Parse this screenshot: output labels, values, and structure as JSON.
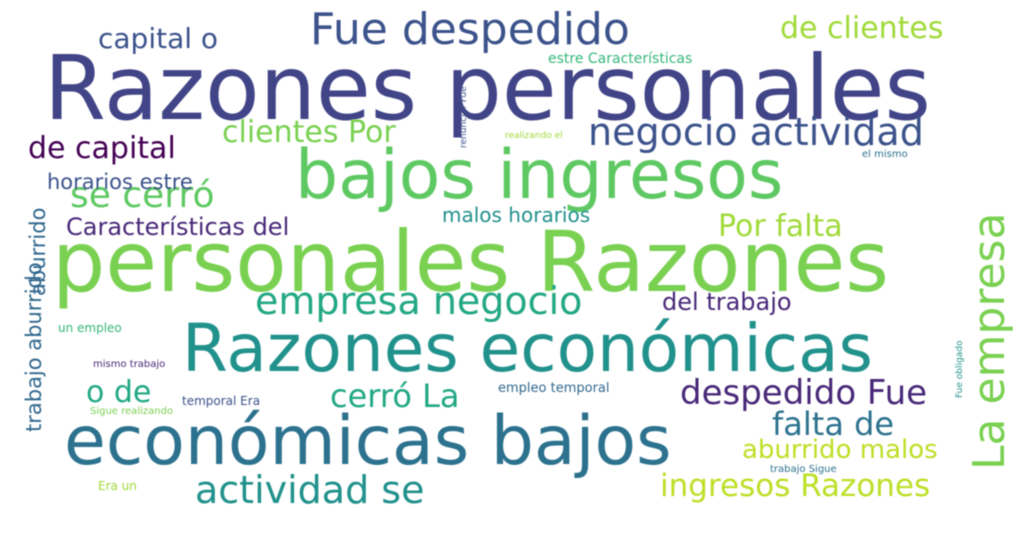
{
  "wordcloud": {
    "words": [
      {
        "id": "w01",
        "text": "Razones personales",
        "color": "#414487"
      },
      {
        "id": "w02",
        "text": "personales Razones",
        "color": "#7ad151"
      },
      {
        "id": "w03",
        "text": "bajos ingresos",
        "color": "#5ec962"
      },
      {
        "id": "w04",
        "text": "Razones económicas",
        "color": "#21918c"
      },
      {
        "id": "w05",
        "text": "económicas bajos",
        "color": "#2c728e"
      },
      {
        "id": "w06",
        "text": "Fue despedido",
        "color": "#3b528b"
      },
      {
        "id": "w07",
        "text": "La empresa",
        "color": "#7ad151"
      },
      {
        "id": "w08",
        "text": "empresa negocio",
        "color": "#22a884"
      },
      {
        "id": "w09",
        "text": "negocio actividad",
        "color": "#3b528b"
      },
      {
        "id": "w10",
        "text": "actividad se",
        "color": "#21918c"
      },
      {
        "id": "w11",
        "text": "ingresos Razones",
        "color": "#bddf26"
      },
      {
        "id": "w12",
        "text": "despedido Fue",
        "color": "#482878"
      },
      {
        "id": "w13",
        "text": "se cerró",
        "color": "#5ec962"
      },
      {
        "id": "w14",
        "text": "capital o",
        "color": "#3b528b"
      },
      {
        "id": "w15",
        "text": "de clientes",
        "color": "#a0da39"
      },
      {
        "id": "w16",
        "text": "de capital",
        "color": "#440154"
      },
      {
        "id": "w17",
        "text": "clientes Por",
        "color": "#7ad151"
      },
      {
        "id": "w18",
        "text": "cerró La",
        "color": "#22a884"
      },
      {
        "id": "w19",
        "text": "falta de",
        "color": "#2c728e"
      },
      {
        "id": "w20",
        "text": "aburrido malos",
        "color": "#bddf26"
      },
      {
        "id": "w21",
        "text": "Por falta",
        "color": "#a0da39"
      },
      {
        "id": "w22",
        "text": "Características del",
        "color": "#482878"
      },
      {
        "id": "w23",
        "text": "del trabajo",
        "color": "#482878"
      },
      {
        "id": "w24",
        "text": "o de",
        "color": "#22a884"
      },
      {
        "id": "w25",
        "text": "malos horarios",
        "color": "#21918c"
      },
      {
        "id": "w26",
        "text": "horarios estre",
        "color": "#3b528b"
      },
      {
        "id": "w27",
        "text": "aburrido",
        "color": "#31688e"
      },
      {
        "id": "w28",
        "text": "trabajo aburrido",
        "color": "#31688e"
      },
      {
        "id": "w29",
        "text": "estre Características",
        "color": "#35b779"
      },
      {
        "id": "w30",
        "text": "renunciar Fue",
        "color": "#3b528b"
      },
      {
        "id": "w31",
        "text": "realizando el",
        "color": "#a0da39"
      },
      {
        "id": "w32",
        "text": "el mismo",
        "color": "#2c728e"
      },
      {
        "id": "w33",
        "text": "un empleo",
        "color": "#35b779"
      },
      {
        "id": "w34",
        "text": "mismo trabajo",
        "color": "#482878"
      },
      {
        "id": "w35",
        "text": "temporal Era",
        "color": "#3b528b"
      },
      {
        "id": "w36",
        "text": "empleo temporal",
        "color": "#31688e"
      },
      {
        "id": "w37",
        "text": "Sigue realizando",
        "color": "#7ad151"
      },
      {
        "id": "w38",
        "text": "Era un",
        "color": "#a0da39"
      },
      {
        "id": "w39",
        "text": "trabajo Sigue",
        "color": "#2c728e"
      },
      {
        "id": "w40",
        "text": "Fue obligado",
        "color": "#21918c"
      }
    ]
  }
}
